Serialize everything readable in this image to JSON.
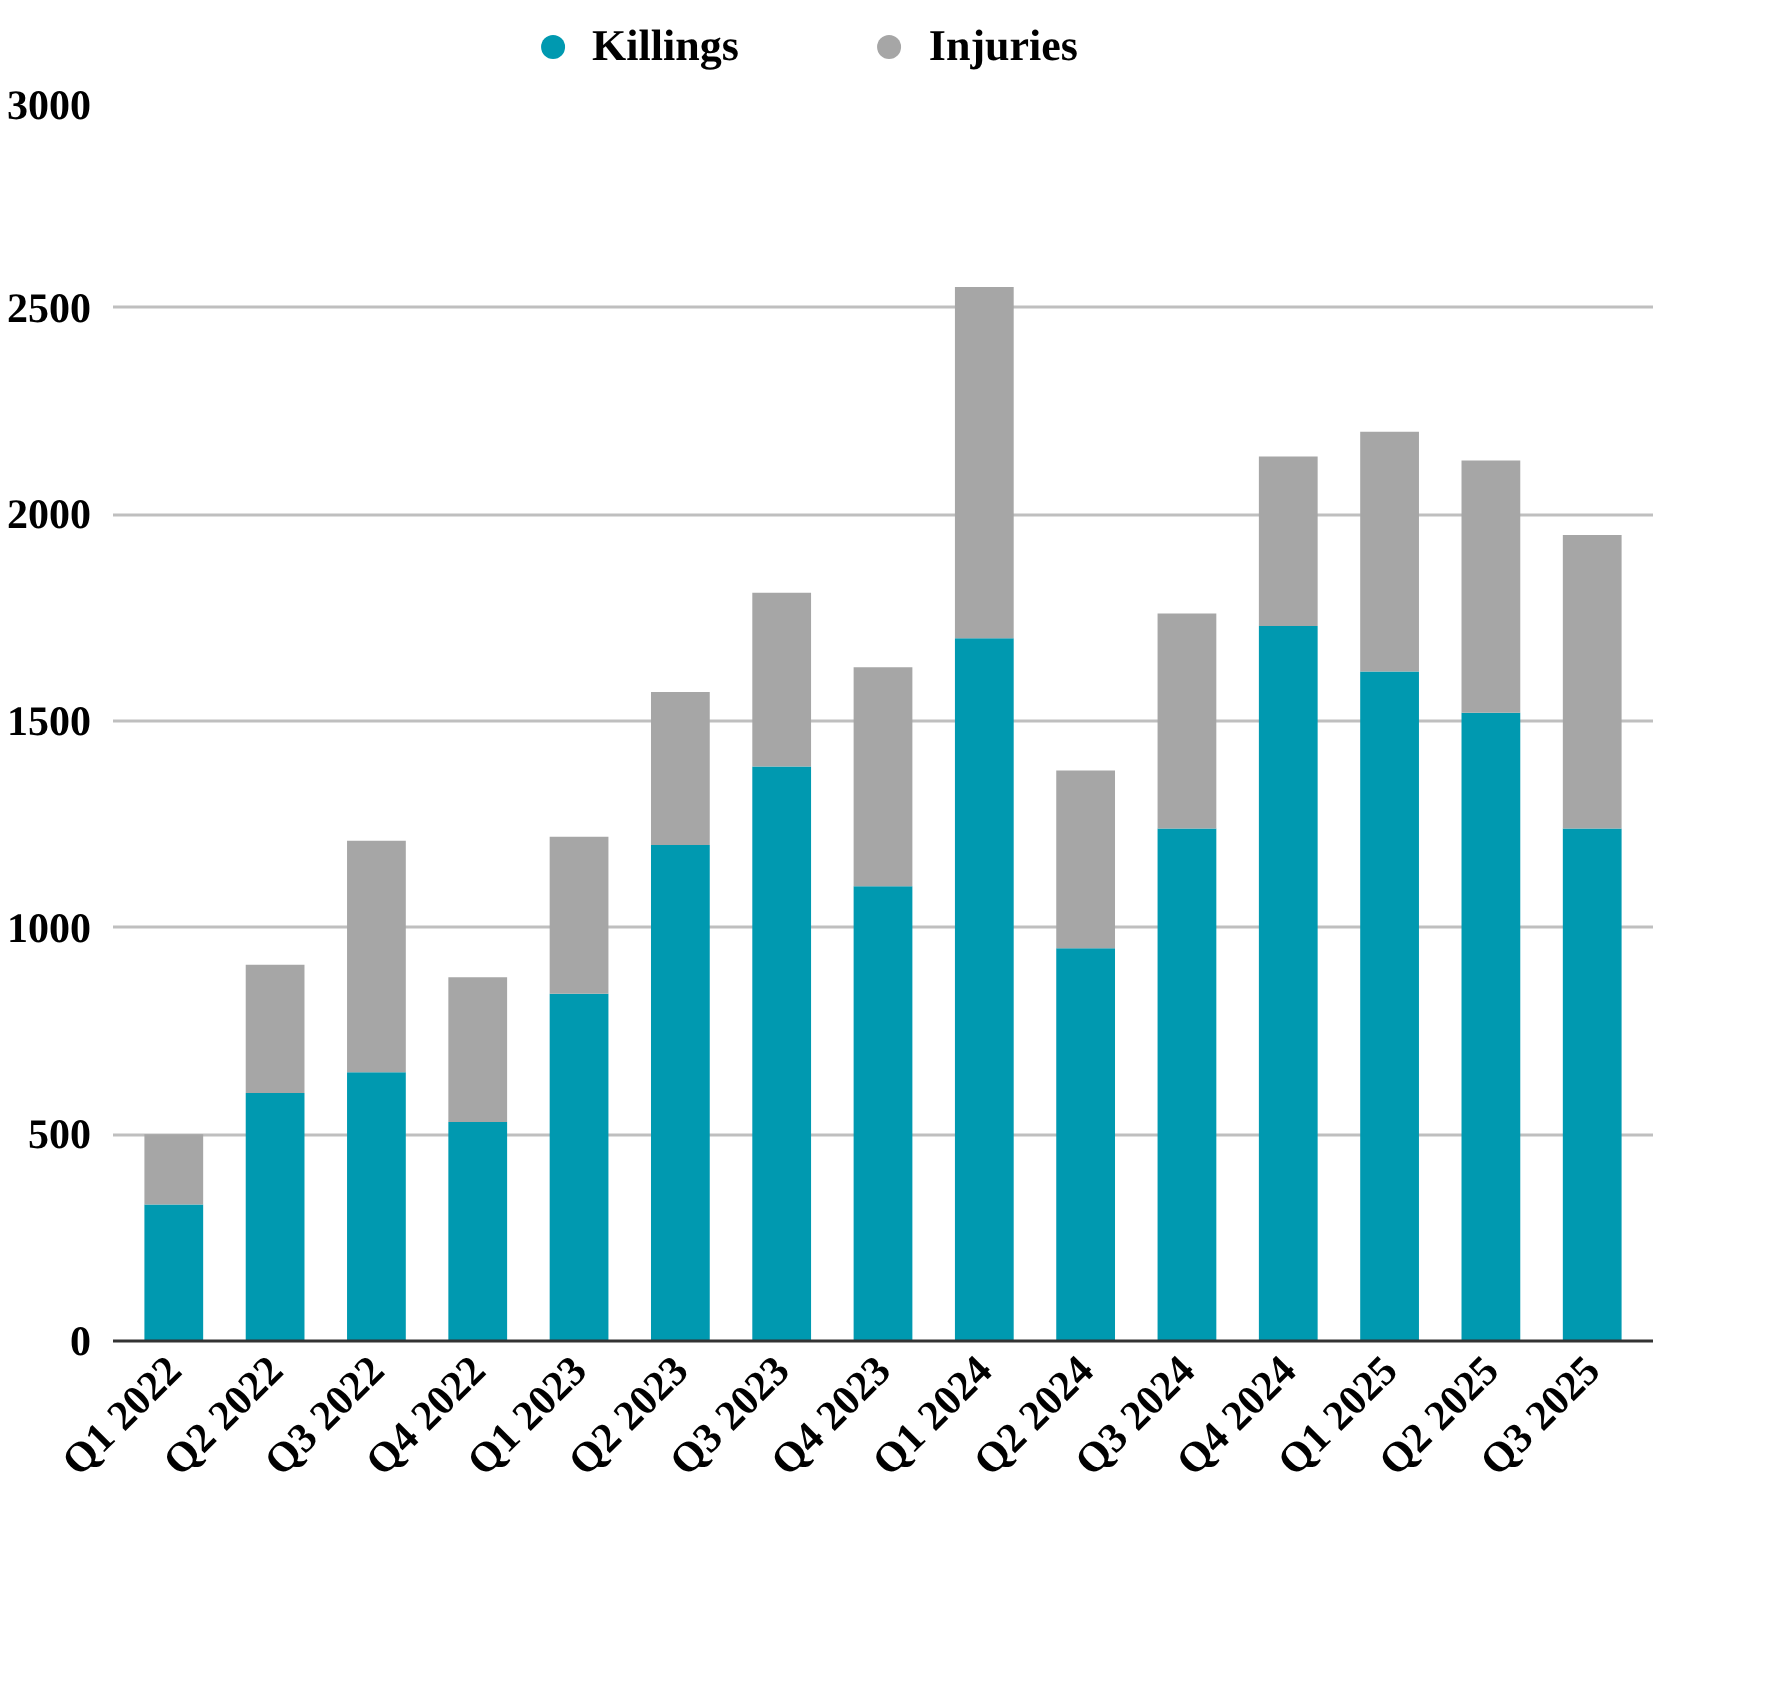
{
  "chart_data": {
    "type": "bar",
    "stacked": true,
    "categories": [
      "Q1 2022",
      "Q2 2022",
      "Q3 2022",
      "Q4 2022",
      "Q1 2023",
      "Q2 2023",
      "Q3 2023",
      "Q4 2023",
      "Q1 2024",
      "Q2 2024",
      "Q3 2024",
      "Q4 2024",
      "Q1 2025",
      "Q2 2025",
      "Q3 2025"
    ],
    "series": [
      {
        "name": "Killings",
        "color": "#0099b0",
        "values": [
          330,
          600,
          650,
          530,
          840,
          1200,
          1390,
          1100,
          1700,
          950,
          1240,
          1730,
          1620,
          1520,
          1240
        ]
      },
      {
        "name": "Injuries",
        "color": "#a6a6a6",
        "values": [
          170,
          310,
          560,
          350,
          380,
          370,
          420,
          530,
          850,
          430,
          520,
          410,
          580,
          610,
          710
        ]
      }
    ],
    "ylim": [
      0,
      3000
    ],
    "yticks": [
      0,
      500,
      1000,
      1500,
      2000,
      2500,
      3000
    ],
    "grid": "y",
    "legend": "top"
  }
}
